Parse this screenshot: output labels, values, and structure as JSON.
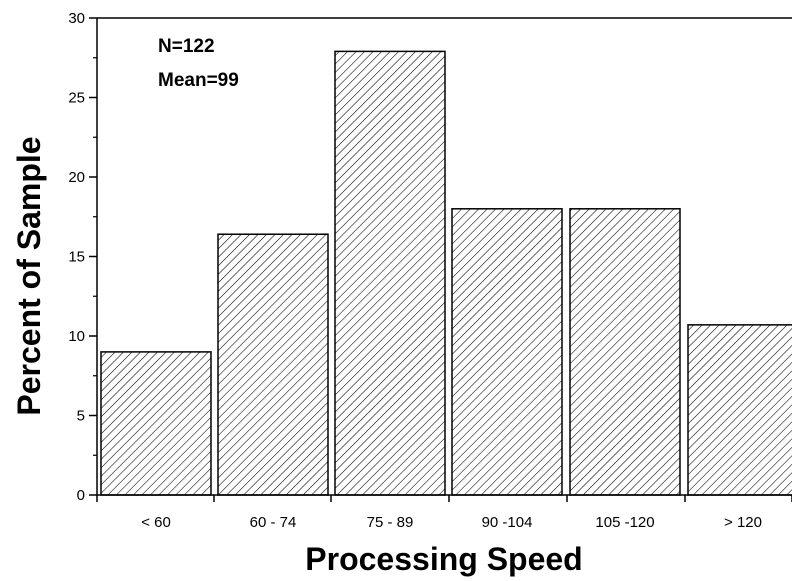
{
  "chart_data": {
    "type": "bar",
    "title": "",
    "xlabel": "Processing Speed",
    "ylabel": "Percent of Sample",
    "categories": [
      "< 60",
      "60 - 74",
      "75 - 89",
      "90 -104",
      "105 -120",
      "> 120"
    ],
    "values": [
      9.0,
      16.4,
      27.9,
      18.0,
      18.0,
      10.7
    ],
    "ylim": [
      0,
      30
    ],
    "yticks": [
      0,
      5,
      10,
      15,
      20,
      25,
      30
    ],
    "grid": false,
    "legend": "none",
    "bar_pattern": "diagonal-hatch",
    "bar_fill": "#ffffff",
    "bar_stroke": "#000000",
    "annotations": [
      "N=122",
      "Mean=99"
    ]
  }
}
